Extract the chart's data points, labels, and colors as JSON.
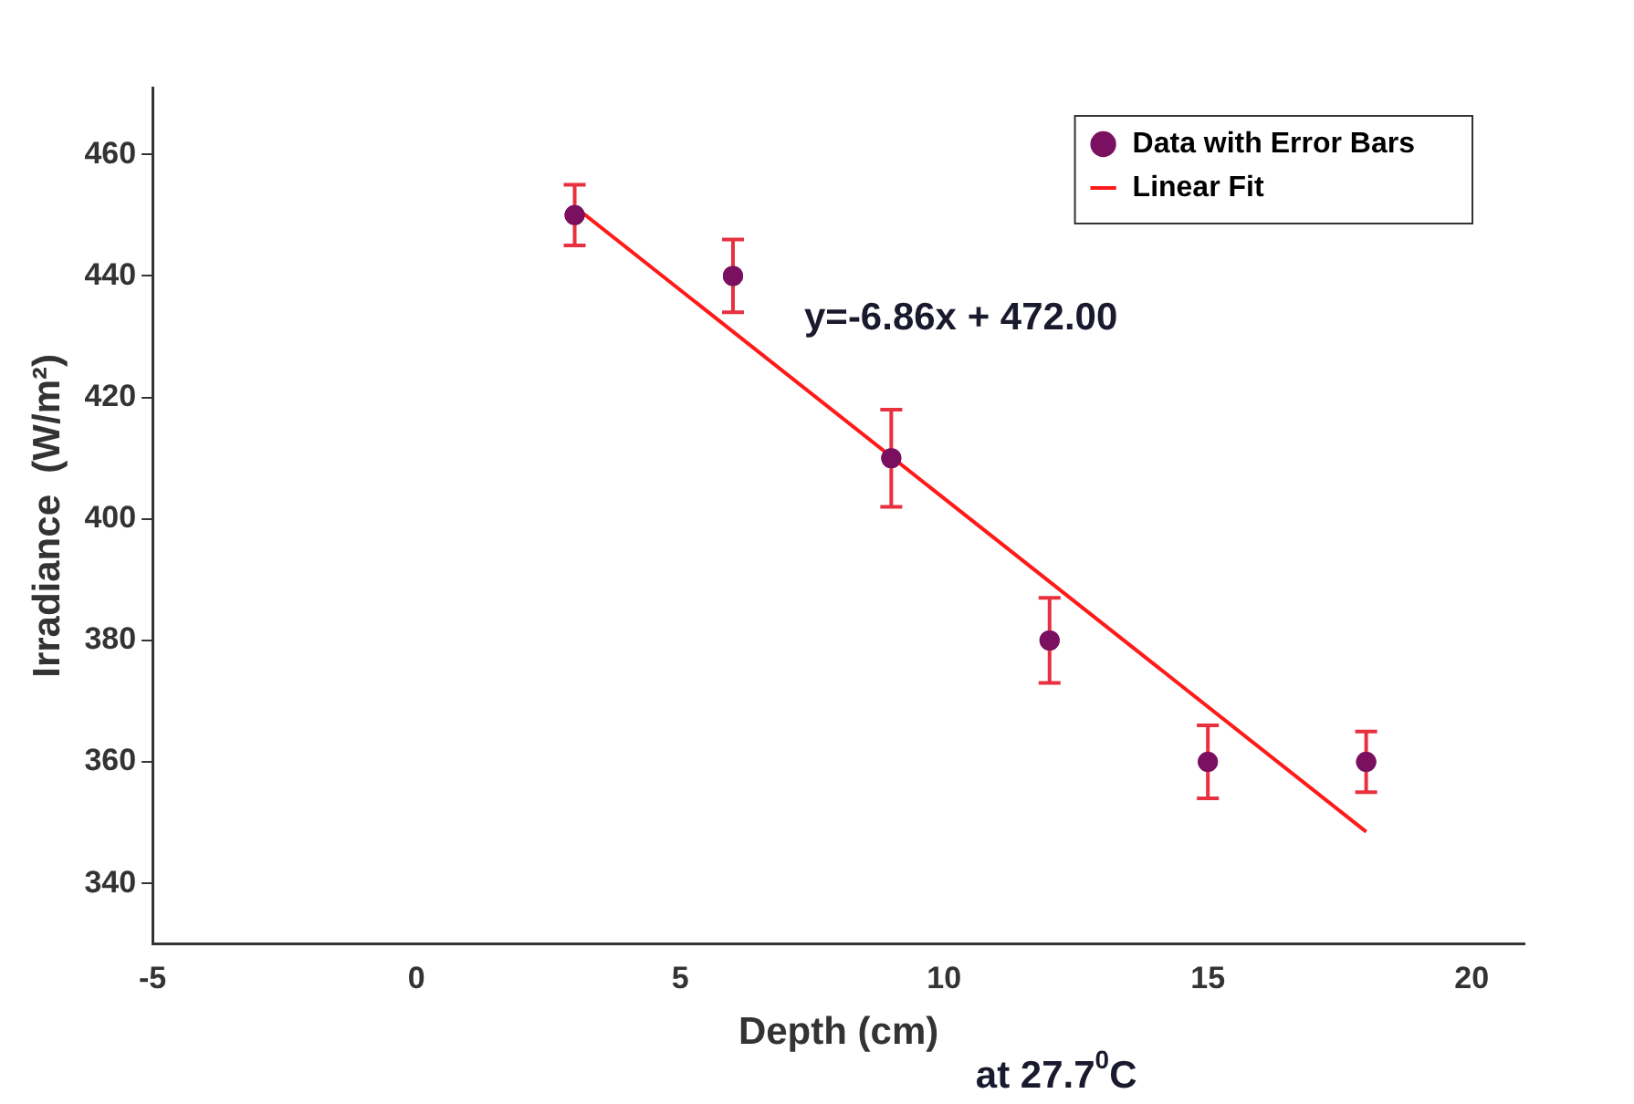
{
  "chart_data": {
    "type": "scatter",
    "xlabel": "Depth (cm)",
    "ylabel": "Irradiance  (W/m²)",
    "xlim": [
      -5,
      21
    ],
    "xticks": [
      -5,
      0,
      5,
      10,
      15,
      20
    ],
    "ylim": [
      330,
      471
    ],
    "yticks": [
      340,
      360,
      380,
      400,
      420,
      440,
      460
    ],
    "grid": false,
    "legend": "top right",
    "marker": "circle",
    "series": [
      {
        "name": "Data with Error Bars",
        "color": "#7b1060",
        "x": [
          3,
          6,
          9,
          12,
          15,
          18
        ],
        "values": [
          450,
          440,
          410,
          380,
          360,
          360
        ],
        "errors": [
          5,
          6,
          8,
          7,
          6,
          5
        ]
      },
      {
        "name": "Linear Fit",
        "type": "line",
        "color": "#ff1a1a",
        "marker": "none",
        "x": [
          3,
          18
        ],
        "values": [
          451.4,
          348.5
        ]
      }
    ],
    "annotations": [
      "y=-6.86x + 472.00",
      "at 27.7$^{0}$C"
    ]
  }
}
